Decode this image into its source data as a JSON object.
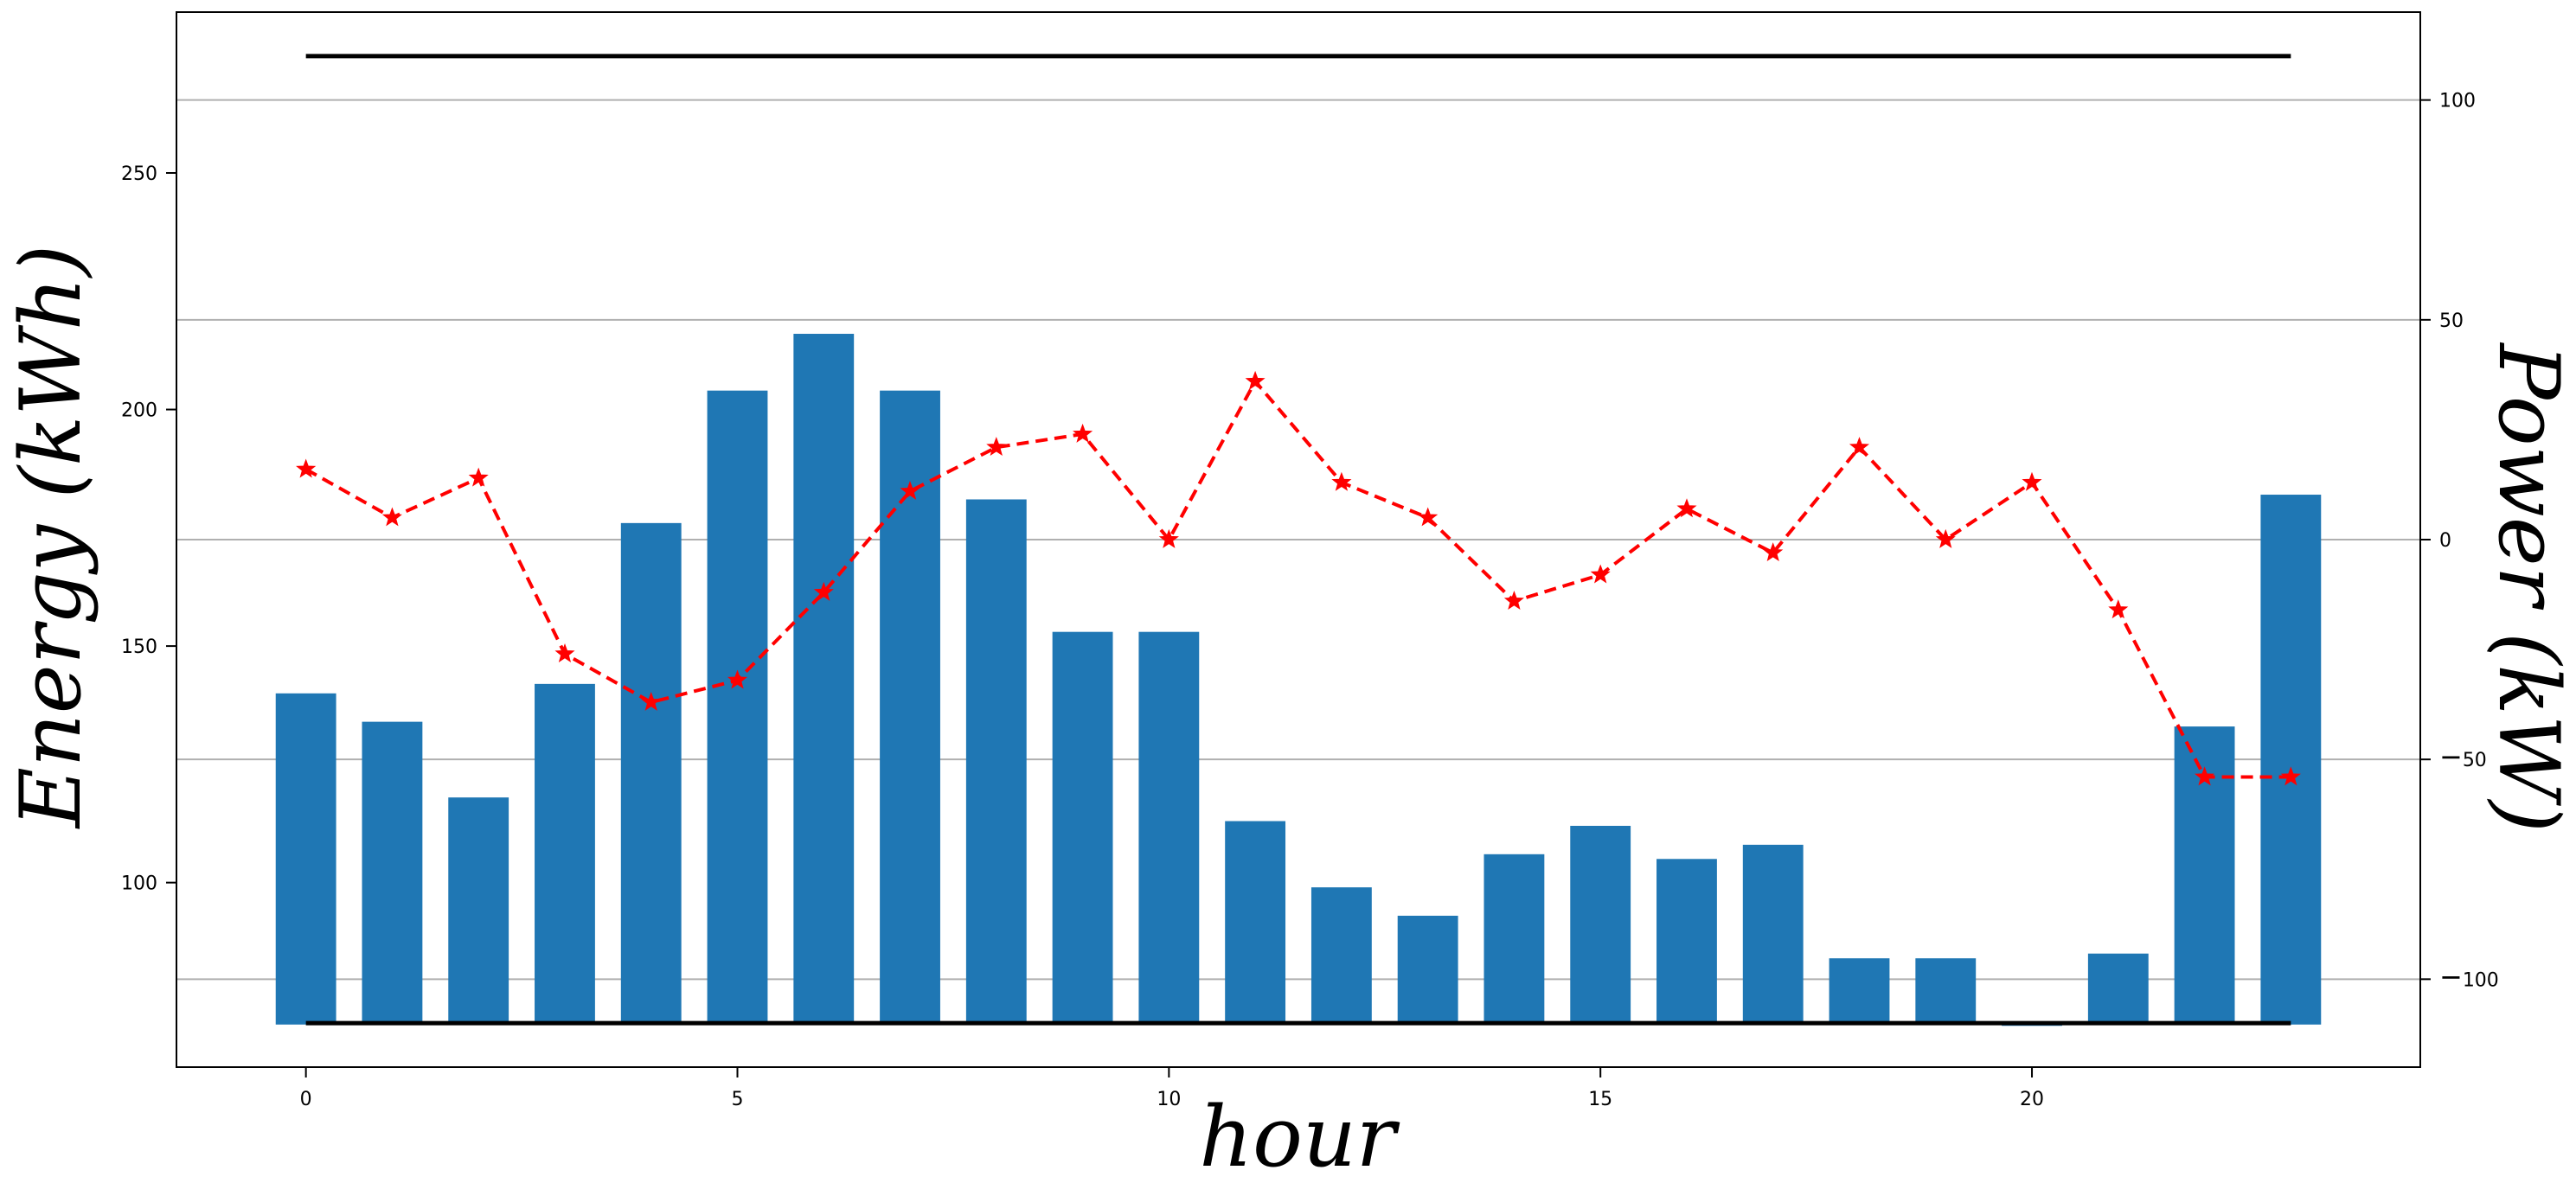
{
  "chart_data": {
    "type": "bar",
    "xlabel": "hour",
    "ylabel": "Energy (kWh)",
    "y2label": "Power (kW)",
    "x": [
      0,
      1,
      2,
      3,
      4,
      5,
      6,
      7,
      8,
      9,
      10,
      11,
      12,
      13,
      14,
      15,
      16,
      17,
      18,
      19,
      20,
      21,
      22,
      23
    ],
    "xticks": [
      "0",
      "5",
      "10",
      "15",
      "20"
    ],
    "xlim": [
      -1.5,
      24.5
    ],
    "ylim": [
      61,
      284
    ],
    "yticks": [
      "100",
      "150",
      "200",
      "250"
    ],
    "y2lim": [
      -120,
      120
    ],
    "y2ticks": [
      "100",
      "50",
      "0",
      "50",
      "100"
    ],
    "grid": "horizontal, right axis",
    "bars": {
      "color": "#1f77b4",
      "base": 70,
      "values": [
        140,
        134,
        118,
        142,
        176,
        204,
        216,
        204,
        181,
        153,
        153,
        113,
        99,
        93,
        106,
        112,
        105,
        108,
        84,
        84,
        70,
        85,
        133,
        182
      ]
    },
    "power_line": {
      "color": "#ff0000",
      "style": "dashed, star markers",
      "values": [
        16,
        5,
        14,
        -26,
        -37,
        -32,
        -12,
        11,
        21,
        24,
        0,
        36,
        13,
        5,
        -14,
        -8,
        7,
        -3,
        21,
        0,
        13,
        -16,
        -54,
        -54
      ]
    },
    "reference_lines": {
      "color": "#000000",
      "upper_kW": 110,
      "lower_kW": -110
    }
  }
}
